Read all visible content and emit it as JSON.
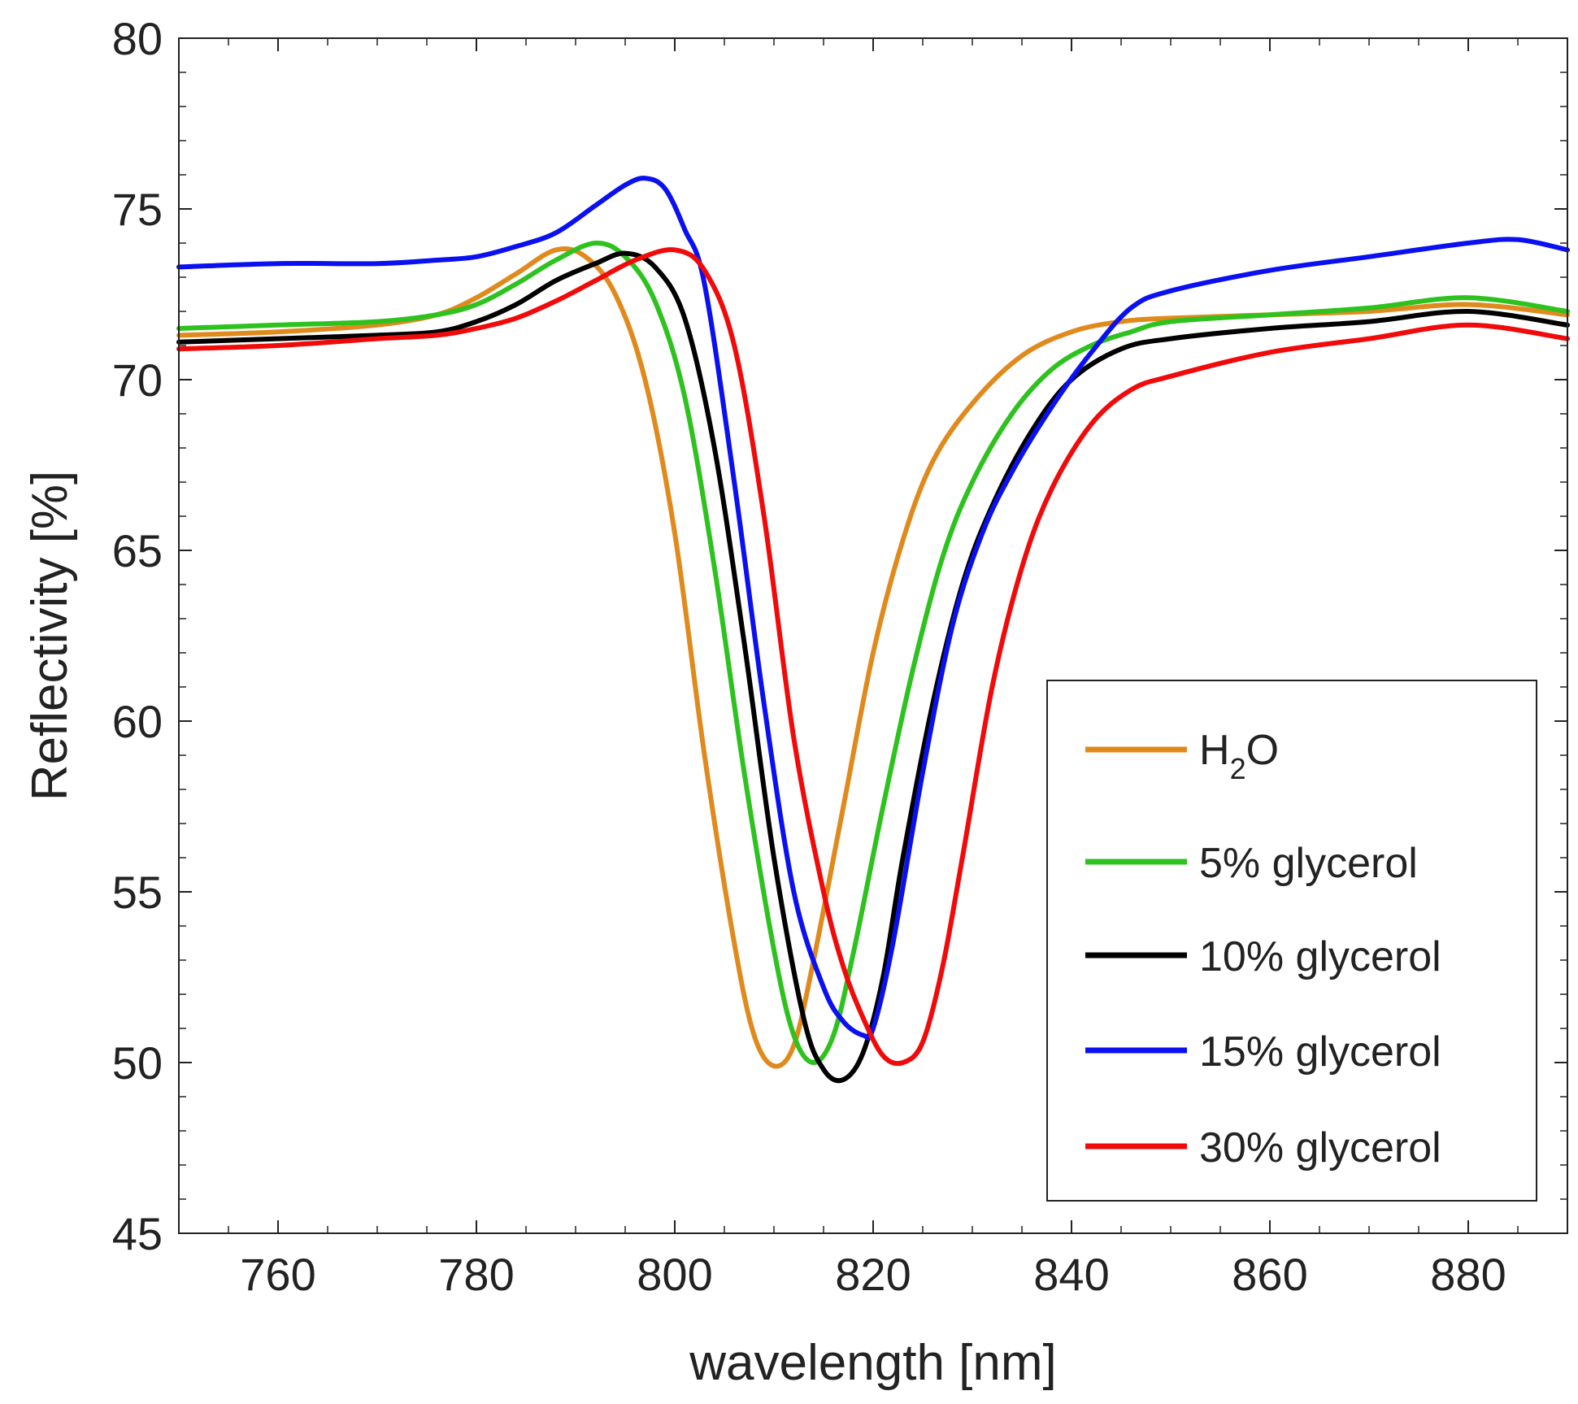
{
  "chart_data": {
    "type": "line",
    "title": "",
    "xlabel": "wavelength [nm]",
    "ylabel": "Reflectivity [%]",
    "xlim": [
      750,
      890
    ],
    "ylim": [
      45,
      80
    ],
    "xticks": [
      760,
      780,
      800,
      820,
      840,
      860,
      880
    ],
    "yticks": [
      45,
      50,
      55,
      60,
      65,
      70,
      75,
      80
    ],
    "grid": false,
    "legend_position": "lower-right",
    "series": [
      {
        "name": "H2O",
        "label_main": "H",
        "label_sub": "2",
        "label_tail": "O",
        "color": "#E08A1E",
        "x": [
          750,
          760,
          770,
          776,
          780,
          784,
          788,
          791,
          794,
          797,
          800,
          803,
          806,
          808,
          810,
          812,
          814,
          817,
          820,
          823,
          826,
          830,
          835,
          840,
          845,
          850,
          860,
          870,
          880,
          890
        ],
        "y": [
          71.3,
          71.4,
          71.6,
          71.9,
          72.4,
          73.1,
          73.8,
          73.6,
          72.5,
          70.0,
          65.5,
          59.0,
          53.5,
          50.8,
          49.9,
          50.5,
          53.0,
          57.5,
          62.0,
          65.3,
          67.6,
          69.3,
          70.7,
          71.4,
          71.7,
          71.8,
          71.9,
          72.0,
          72.2,
          71.9
        ]
      },
      {
        "name": "5% glycerol",
        "color": "#2DC21E",
        "x": [
          750,
          760,
          770,
          776,
          780,
          784,
          788,
          792,
          795,
          798,
          801,
          804,
          807,
          810,
          812,
          814,
          816,
          818,
          821,
          824,
          827,
          830,
          834,
          838,
          842,
          846,
          850,
          860,
          870,
          880,
          890
        ],
        "y": [
          71.5,
          71.6,
          71.7,
          71.9,
          72.2,
          72.8,
          73.5,
          74.0,
          73.6,
          72.3,
          69.5,
          64.5,
          58.5,
          53.3,
          50.8,
          50.0,
          50.8,
          53.2,
          57.5,
          61.5,
          64.8,
          67.0,
          69.0,
          70.3,
          71.0,
          71.4,
          71.7,
          71.9,
          72.1,
          72.4,
          72.0
        ]
      },
      {
        "name": "10% glycerol",
        "color": "#000000",
        "x": [
          750,
          760,
          770,
          776,
          780,
          784,
          788,
          792,
          795,
          798,
          801,
          804,
          807,
          810,
          813,
          815,
          817,
          819,
          821,
          823,
          826,
          829,
          832,
          836,
          840,
          845,
          850,
          860,
          870,
          880,
          890
        ],
        "y": [
          71.1,
          71.2,
          71.3,
          71.4,
          71.7,
          72.2,
          72.9,
          73.4,
          73.7,
          73.3,
          71.8,
          68.0,
          62.3,
          56.0,
          51.3,
          49.8,
          49.5,
          50.3,
          52.5,
          56.0,
          60.5,
          64.0,
          66.3,
          68.5,
          70.0,
          70.9,
          71.2,
          71.5,
          71.7,
          72.0,
          71.6
        ]
      },
      {
        "name": "15% glycerol",
        "color": "#0A10F0",
        "x": [
          750,
          760,
          770,
          776,
          780,
          784,
          788,
          792,
          795,
          797,
          799,
          801,
          803,
          806,
          809,
          812,
          815,
          817,
          819,
          820,
          822,
          825,
          828,
          831,
          834,
          838,
          842,
          846,
          850,
          860,
          870,
          880,
          885,
          890
        ],
        "y": [
          73.3,
          73.4,
          73.4,
          73.5,
          73.6,
          73.9,
          74.3,
          75.1,
          75.7,
          75.9,
          75.6,
          74.4,
          72.8,
          67.0,
          60.5,
          55.0,
          52.2,
          51.2,
          50.8,
          51.0,
          53.5,
          58.5,
          62.8,
          65.5,
          67.3,
          69.2,
          70.8,
          72.1,
          72.6,
          73.2,
          73.6,
          74.0,
          74.1,
          73.8
        ]
      },
      {
        "name": "30% glycerol",
        "color": "#F00A0A",
        "x": [
          750,
          760,
          770,
          776,
          780,
          784,
          788,
          792,
          796,
          800,
          803,
          806,
          809,
          812,
          815,
          817,
          819,
          821,
          823,
          825,
          827,
          829,
          832,
          835,
          838,
          842,
          846,
          850,
          860,
          870,
          880,
          890
        ],
        "y": [
          70.9,
          71.0,
          71.2,
          71.3,
          71.5,
          71.8,
          72.3,
          72.9,
          73.5,
          73.8,
          73.2,
          71.0,
          66.0,
          59.5,
          55.0,
          52.8,
          51.3,
          50.2,
          50.0,
          50.6,
          52.8,
          56.0,
          61.0,
          64.5,
          66.8,
          68.7,
          69.7,
          70.1,
          70.8,
          71.2,
          71.6,
          71.2
        ]
      }
    ]
  }
}
